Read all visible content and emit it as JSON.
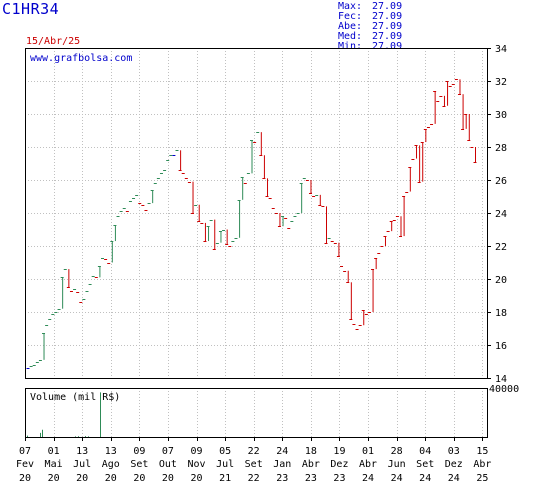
{
  "header": {
    "ticker": "C1HR34",
    "date": "15/Abr/25",
    "source": "www.grafbolsa.com",
    "stats": [
      {
        "label": "Max:",
        "value": "27.09"
      },
      {
        "label": "Fec:",
        "value": "27.09"
      },
      {
        "label": "Abe:",
        "value": "27.09"
      },
      {
        "label": "Med:",
        "value": "27.09"
      },
      {
        "label": "Min:",
        "value": "27.09"
      }
    ]
  },
  "colors": {
    "up": "#2e8b57",
    "down": "#cc0000",
    "neutral": "#0000cc",
    "grid": "#c0c0c0",
    "axis": "#000000",
    "volume": "#2e8b57"
  },
  "chart_data": [
    {
      "type": "bar",
      "subtype": "ohlc-price",
      "title": "",
      "y_ticks": [
        14,
        16,
        18,
        20,
        22,
        24,
        26,
        28,
        30,
        32,
        34
      ],
      "ylim": [
        14,
        34
      ],
      "x_ticks": [
        {
          "top": "07",
          "bottom": "Fev",
          "year": "20"
        },
        {
          "top": "01",
          "bottom": "Mai",
          "year": "20"
        },
        {
          "top": "13",
          "bottom": "Jul",
          "year": "20"
        },
        {
          "top": "13",
          "bottom": "Ago",
          "year": "20"
        },
        {
          "top": "09",
          "bottom": "Set",
          "year": "20"
        },
        {
          "top": "07",
          "bottom": "Out",
          "year": "20"
        },
        {
          "top": "09",
          "bottom": "Nov",
          "year": "20"
        },
        {
          "top": "05",
          "bottom": "Jul",
          "year": "21"
        },
        {
          "top": "22",
          "bottom": "Set",
          "year": "22"
        },
        {
          "top": "24",
          "bottom": "Jan",
          "year": "23"
        },
        {
          "top": "18",
          "bottom": "Abr",
          "year": "23"
        },
        {
          "top": "19",
          "bottom": "Dez",
          "year": "23"
        },
        {
          "top": "01",
          "bottom": "Abr",
          "year": "24"
        },
        {
          "top": "28",
          "bottom": "Jun",
          "year": "24"
        },
        {
          "top": "04",
          "bottom": "Set",
          "year": "24"
        },
        {
          "top": "03",
          "bottom": "Dez",
          "year": "24"
        },
        {
          "top": "15",
          "bottom": "Abr",
          "year": "25"
        }
      ],
      "series": [
        {
          "values": [
            14.6,
            14.7,
            14.8,
            15,
            15.1,
            16.7,
            17.2,
            17.6,
            17.9,
            18,
            18.2,
            20.1,
            20.6,
            19.5,
            19.3,
            19.4,
            19.2,
            18.6,
            18.8,
            19.3,
            19.7,
            20.2,
            20.1,
            20.8,
            21.3,
            21.2,
            21,
            22.3,
            23.3,
            23.8,
            24.1,
            24.3,
            24.1,
            24.7,
            24.9,
            25.1,
            24.6,
            24.5,
            24.2,
            24.6,
            25.4,
            25.8,
            26.1,
            26.4,
            26.6,
            27.2,
            27.5,
            27.5,
            27.8,
            26.6,
            26.4,
            26.1,
            25.9,
            24,
            24.5,
            23.5,
            23.4,
            22.3,
            23.2,
            23.6,
            21.8,
            22.2,
            22.9,
            23,
            22.1,
            22,
            22.3,
            22.5,
            24.8,
            26.2,
            25.8,
            26.4,
            28.4,
            28.3,
            28.9,
            27.5,
            26.1,
            25,
            24.9,
            24.3,
            24,
            23.2,
            23.8,
            23.7,
            23.1,
            23.5,
            23.8,
            24,
            25.8,
            26.1,
            26,
            25.2,
            25,
            25.1,
            24.5,
            24.4,
            22.2,
            22.5,
            22.3,
            22.2,
            21.4,
            20.8,
            20.5,
            19.8,
            17.6,
            17.3,
            17,
            17.2,
            18.1,
            17.9,
            18,
            20.6,
            21.3,
            21.6,
            22,
            22.6,
            22.9,
            23.5,
            23.6,
            23.8,
            22.6,
            25,
            25.3,
            26.8,
            27.3,
            28.1,
            25.9,
            28.3,
            29.1,
            29.2,
            29.4,
            31.4,
            30.8,
            31.1,
            30.5,
            32,
            31.7,
            31.8,
            32.1,
            31.2,
            29.1,
            30,
            28.4,
            28,
            27.1
          ]
        }
      ]
    },
    {
      "type": "bar",
      "subtype": "volume",
      "title": "Volume (mil R$)",
      "y_ticks": [
        40000
      ],
      "ylim": [
        0,
        40000
      ],
      "series": [
        {
          "values": [
            1200,
            300,
            400,
            250,
            300,
            3500,
            6200,
            200,
            250,
            300,
            400,
            300,
            250,
            350,
            300,
            200,
            250,
            300,
            400,
            500,
            600,
            400,
            300,
            700,
            500,
            300,
            250,
            200,
            300,
            38000,
            200,
            150,
            300,
            200,
            100,
            150,
            200,
            300,
            250,
            200,
            150,
            200,
            250,
            300,
            200,
            150,
            100,
            200,
            150,
            100,
            150,
            200,
            100,
            150,
            100,
            80,
            100,
            150,
            100,
            120,
            80,
            100,
            120,
            100,
            80,
            60,
            80,
            100
          ]
        }
      ]
    }
  ]
}
